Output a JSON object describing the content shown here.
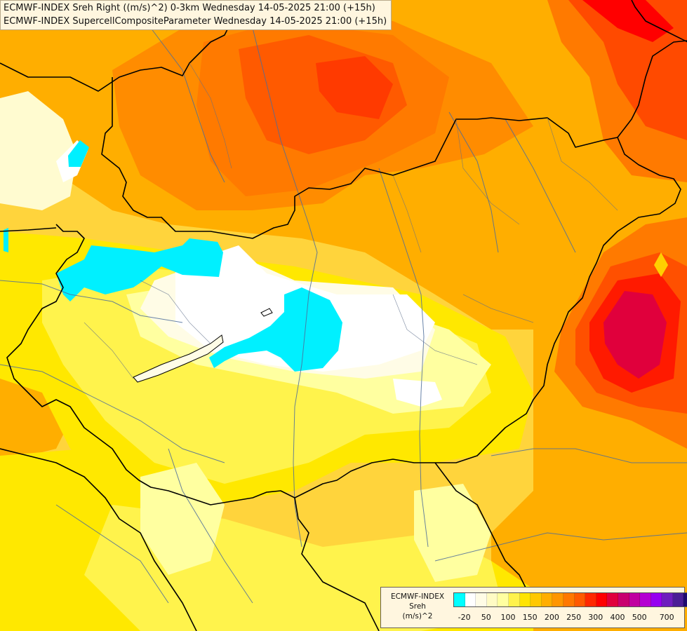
{
  "header": {
    "line1": "ECMWF-INDEX Sreh Right ((m/s)^2) 0-3km Wednesday 14-05-2025 21:00 (+15h)",
    "line2": "ECMWF-INDEX SupercellCompositeParameter Wednesday 14-05-2025 21:00 (+15h)"
  },
  "legend": {
    "line1": "ECMWF-INDEX",
    "line2": "Sreh",
    "line3": "(m/s)^2",
    "colors": [
      "#00ffff",
      "#ffffff",
      "#fffce6",
      "#fffbc4",
      "#ffffa0",
      "#fff24c",
      "#ffe400",
      "#ffc800",
      "#ffae00",
      "#ff9600",
      "#ff7800",
      "#ff5a00",
      "#ff2800",
      "#ff0000",
      "#e0003c",
      "#c8006e",
      "#c000a0",
      "#b400d2",
      "#9600f0",
      "#6e1ebe",
      "#4b1e96",
      "#1e0a6e"
    ],
    "ticks": [
      "-20",
      "50",
      "100",
      "150",
      "200",
      "250",
      "300",
      "400",
      "500",
      "700"
    ]
  },
  "colors": {
    "border": "#000000",
    "river": "#4d6d9a"
  }
}
